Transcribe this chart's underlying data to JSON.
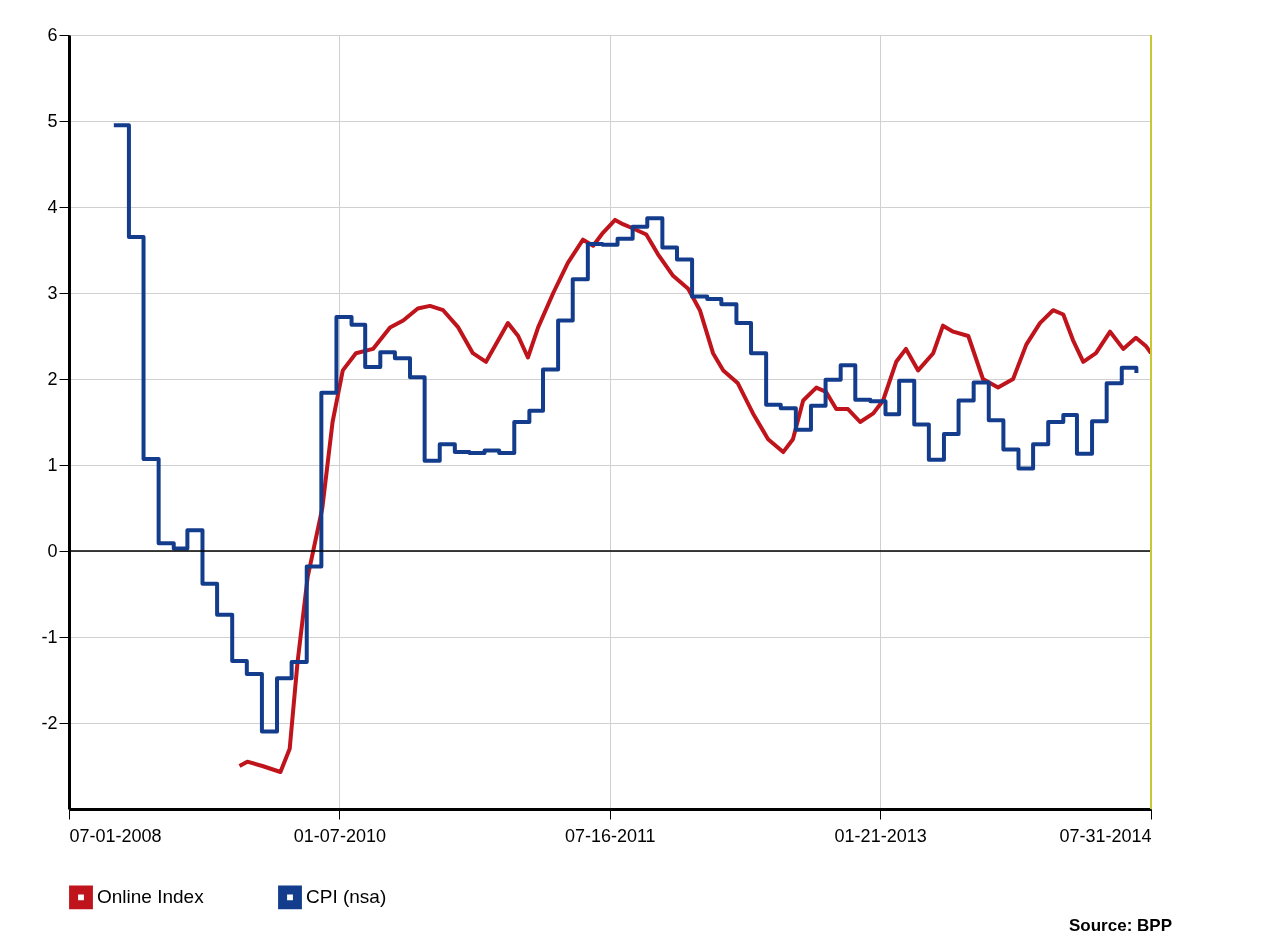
{
  "chart_data": {
    "type": "line",
    "xlim": [
      "2008-07-01",
      "2014-07-31"
    ],
    "xticks": [
      {
        "value": "2008-07-01",
        "label": "07-01-2008"
      },
      {
        "value": "2010-01-07",
        "label": "01-07-2010"
      },
      {
        "value": "2011-07-16",
        "label": "07-16-2011"
      },
      {
        "value": "2013-01-21",
        "label": "01-21-2013"
      },
      {
        "value": "2014-07-31",
        "label": "07-31-2014"
      }
    ],
    "ylim": [
      -3,
      6
    ],
    "yticks": [
      -2,
      -1,
      0,
      1,
      2,
      3,
      4,
      5,
      6
    ],
    "grid": true,
    "legend": "bottom left",
    "ref_lines": [
      {
        "axis": "y",
        "value": 0,
        "color": "#000000"
      },
      {
        "axis": "x",
        "value": "2014-07-31",
        "color": "#c8c832"
      }
    ],
    "annotations": [
      "Source: BPP"
    ],
    "series": [
      {
        "name": "Online Index",
        "color": "#c0141c",
        "x": [
          "2009-06-16",
          "2009-07-02",
          "2009-08-02",
          "2009-09-08",
          "2009-09-27",
          "2009-10-13",
          "2009-11-03",
          "2009-12-03",
          "2009-12-24",
          "2010-01-14",
          "2010-02-10",
          "2010-03-17",
          "2010-04-21",
          "2010-05-18",
          "2010-06-17",
          "2010-07-12",
          "2010-08-08",
          "2010-09-08",
          "2010-10-08",
          "2010-11-04",
          "2010-11-29",
          "2010-12-19",
          "2011-01-09",
          "2011-01-29",
          "2011-02-19",
          "2011-03-22",
          "2011-04-21",
          "2011-05-22",
          "2011-06-12",
          "2011-07-02",
          "2011-07-27",
          "2011-08-12",
          "2011-09-02",
          "2011-09-29",
          "2011-10-23",
          "2011-11-23",
          "2011-12-24",
          "2012-01-17",
          "2012-02-13",
          "2012-03-05",
          "2012-04-04",
          "2012-05-05",
          "2012-06-05",
          "2012-07-06",
          "2012-07-26",
          "2012-08-16",
          "2012-09-12",
          "2012-10-02",
          "2012-10-23",
          "2012-11-16",
          "2012-12-11",
          "2013-01-07",
          "2013-01-27",
          "2013-02-23",
          "2013-03-15",
          "2013-04-09",
          "2013-05-10",
          "2013-05-30",
          "2013-06-20",
          "2013-07-21",
          "2013-08-20",
          "2013-09-20",
          "2013-10-21",
          "2013-11-17",
          "2013-12-15",
          "2014-01-11",
          "2014-02-01",
          "2014-02-21",
          "2014-03-14",
          "2014-04-09",
          "2014-05-08",
          "2014-06-04",
          "2014-06-30",
          "2014-07-21",
          "2014-07-31"
        ],
        "values": [
          -2.5,
          -2.45,
          -2.5,
          -2.57,
          -2.3,
          -1.3,
          -0.3,
          0.5,
          1.5,
          2.1,
          2.3,
          2.35,
          2.6,
          2.68,
          2.82,
          2.85,
          2.8,
          2.6,
          2.3,
          2.2,
          2.45,
          2.65,
          2.5,
          2.25,
          2.6,
          3.0,
          3.35,
          3.62,
          3.55,
          3.7,
          3.85,
          3.8,
          3.75,
          3.68,
          3.45,
          3.2,
          3.05,
          2.8,
          2.3,
          2.1,
          1.95,
          1.6,
          1.3,
          1.15,
          1.3,
          1.75,
          1.9,
          1.85,
          1.65,
          1.65,
          1.5,
          1.6,
          1.75,
          2.2,
          2.35,
          2.1,
          2.3,
          2.62,
          2.55,
          2.5,
          2.0,
          1.9,
          2.0,
          2.4,
          2.65,
          2.8,
          2.75,
          2.45,
          2.2,
          2.3,
          2.55,
          2.35,
          2.48,
          2.38,
          2.3
        ]
      },
      {
        "name": "CPI (nsa)",
        "type": "step",
        "color": "#143c8c",
        "x": [
          "2008-10",
          "2008-11",
          "2008-12",
          "2009-01",
          "2009-02",
          "2009-03",
          "2009-04",
          "2009-05",
          "2009-06",
          "2009-07",
          "2009-08",
          "2009-09",
          "2009-10",
          "2009-11",
          "2009-12",
          "2010-01",
          "2010-02",
          "2010-03",
          "2010-04",
          "2010-05",
          "2010-06",
          "2010-07",
          "2010-08",
          "2010-09",
          "2010-10",
          "2010-11",
          "2010-12",
          "2011-01",
          "2011-02",
          "2011-03",
          "2011-04",
          "2011-05",
          "2011-06",
          "2011-07",
          "2011-08",
          "2011-09",
          "2011-10",
          "2011-11",
          "2011-12",
          "2012-01",
          "2012-02",
          "2012-03",
          "2012-04",
          "2012-05",
          "2012-06",
          "2012-07",
          "2012-08",
          "2012-09",
          "2012-10",
          "2012-11",
          "2012-12",
          "2013-01",
          "2013-02",
          "2013-03",
          "2013-04",
          "2013-05",
          "2013-06",
          "2013-07",
          "2013-08",
          "2013-09",
          "2013-10",
          "2013-11",
          "2013-12",
          "2014-01",
          "2014-02",
          "2014-03",
          "2014-04",
          "2014-05",
          "2014-06",
          "2014-07"
        ],
        "values": [
          4.95,
          3.65,
          1.07,
          0.09,
          0.03,
          0.24,
          -0.38,
          -0.74,
          -1.28,
          -1.43,
          -2.1,
          -1.48,
          -1.29,
          -0.18,
          1.84,
          2.72,
          2.63,
          2.14,
          2.31,
          2.24,
          2.02,
          1.05,
          1.24,
          1.15,
          1.14,
          1.17,
          1.14,
          1.5,
          1.63,
          2.11,
          2.68,
          3.16,
          3.57,
          3.56,
          3.63,
          3.77,
          3.87,
          3.53,
          3.39,
          2.96,
          2.93,
          2.87,
          2.65,
          2.3,
          1.7,
          1.66,
          1.41,
          1.69,
          1.99,
          2.16,
          1.76,
          1.74,
          1.59,
          1.98,
          1.47,
          1.06,
          1.36,
          1.75,
          1.96,
          1.52,
          1.18,
          0.96,
          1.24,
          1.5,
          1.58,
          1.13,
          1.51,
          1.95,
          2.13,
          2.07
        ]
      }
    ]
  }
}
